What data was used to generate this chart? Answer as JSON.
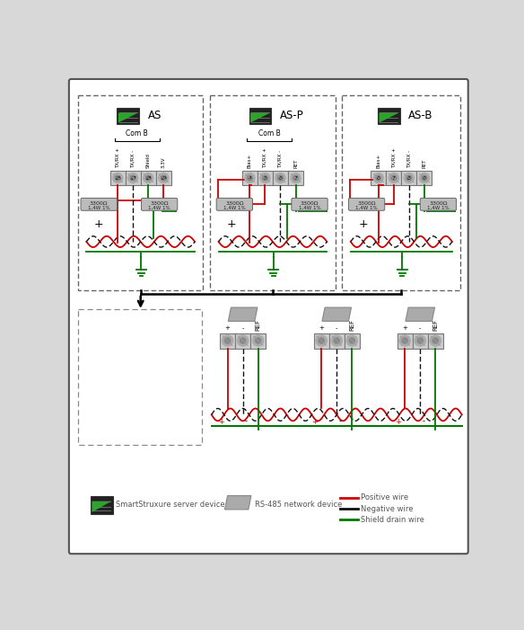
{
  "bg_color": "#d8d8d8",
  "panel_bg": "#ffffff",
  "box_edge": "#666666",
  "pos_color": "#cc0000",
  "neg_color": "#111111",
  "shield_color": "#007700",
  "resistor_label_top": "3300Ω",
  "resistor_label_bot": "1,4W 1%",
  "controllers": [
    {
      "name": "AS",
      "pins": [
        "TX/RX +",
        "TX/RX -",
        "Shield",
        "3.3V"
      ],
      "nums": [
        "16",
        "17",
        "18",
        "19"
      ],
      "has_bias": false,
      "com": "Com B"
    },
    {
      "name": "AS-P",
      "pins": [
        "Bias+",
        "TX/RX +",
        "TX/RX -",
        "RET"
      ],
      "nums": [
        "4",
        "5",
        "6",
        "7"
      ],
      "has_bias": true,
      "com": "Com B"
    },
    {
      "name": "AS-B",
      "pins": [
        "Bias+",
        "TX/RX +",
        "TX/RX -",
        "RET"
      ],
      "nums": [
        "6",
        "7",
        "8",
        "9"
      ],
      "has_bias": true,
      "com": ""
    }
  ],
  "nd_labels": [
    "+",
    "-",
    "REF"
  ],
  "legend_server": "SmartStruxure server device",
  "legend_nd": "RS-485 network device",
  "legend_pos": "Positive wire",
  "legend_neg": "Negative wire",
  "legend_shield": "Shield drain wire"
}
